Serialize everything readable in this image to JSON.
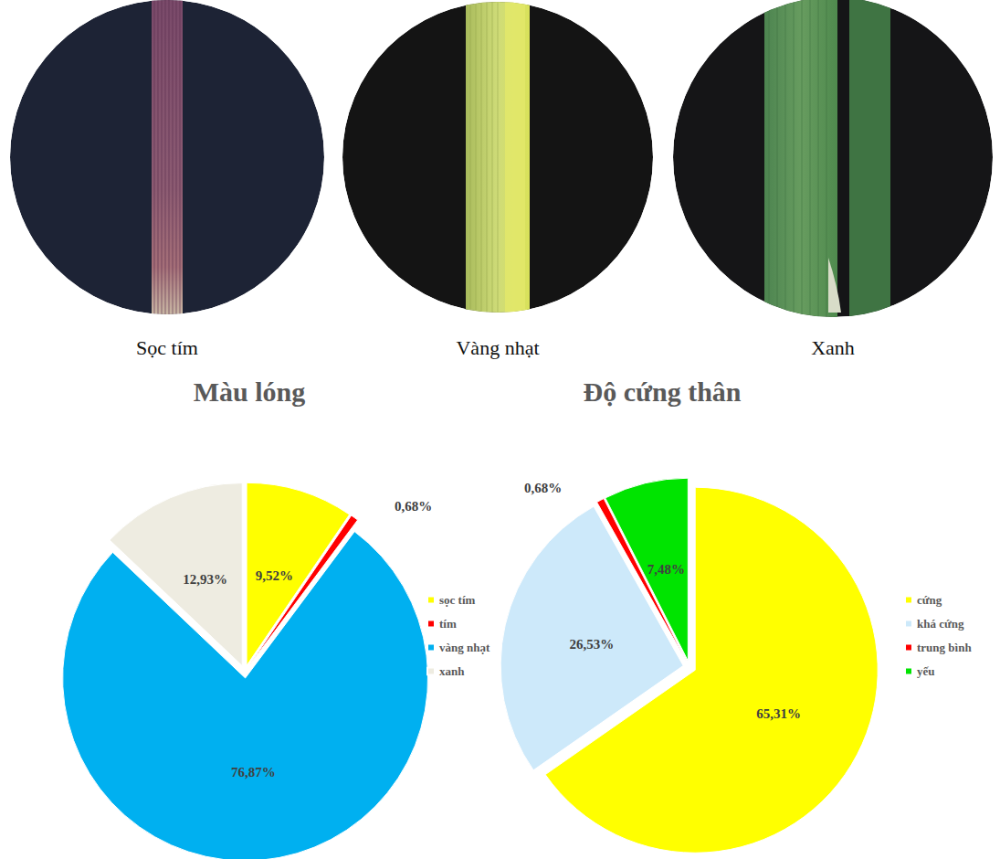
{
  "photos": [
    {
      "caption": "Sọc tím"
    },
    {
      "caption": "Vàng nhạt"
    },
    {
      "caption": "Xanh"
    }
  ],
  "chart_data": [
    {
      "type": "pie",
      "title": "Màu lóng",
      "categories": [
        "sọc tím",
        "tím",
        "vàng nhạt",
        "xanh"
      ],
      "values": [
        9.52,
        0.68,
        76.87,
        12.93
      ],
      "value_labels": [
        "9,52%",
        "0,68%",
        "76,87%",
        "12,93%"
      ],
      "colors": [
        "#ffff00",
        "#ff0000",
        "#00b0f0",
        "#eeece1"
      ],
      "data_labels": true,
      "legend": "right"
    },
    {
      "type": "pie",
      "title": "Độ cứng thân",
      "categories": [
        "cứng",
        "khá cứng",
        "trung bình",
        "yếu"
      ],
      "values": [
        65.31,
        26.53,
        0.68,
        7.48
      ],
      "value_labels": [
        "65,31%",
        "26,53%",
        "0,68%",
        "7,48%"
      ],
      "colors": [
        "#ffff00",
        "#cde9fa",
        "#ff0000",
        "#00e400"
      ],
      "data_labels": true,
      "legend": "right"
    }
  ]
}
